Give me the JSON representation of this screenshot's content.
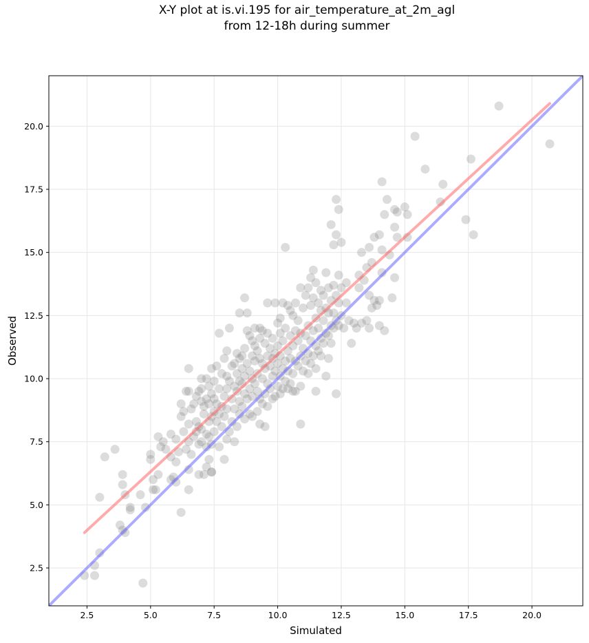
{
  "chart_data": {
    "type": "scatter",
    "title_lines": [
      "X-Y plot at is.vi.195 for air_temperature_at_2m_agl",
      "from 12-18h during summer"
    ],
    "xlabel": "Simulated",
    "ylabel": "Observed",
    "xlim": [
      1.0,
      22.0
    ],
    "ylim": [
      1.0,
      22.0
    ],
    "xticks": [
      2.5,
      5.0,
      7.5,
      10.0,
      12.5,
      15.0,
      17.5,
      20.0
    ],
    "yticks": [
      2.5,
      5.0,
      7.5,
      10.0,
      12.5,
      15.0,
      17.5,
      20.0
    ],
    "xtick_labels": [
      "2.5",
      "5.0",
      "7.5",
      "10.0",
      "12.5",
      "15.0",
      "17.5",
      "20.0"
    ],
    "ytick_labels": [
      "2.5",
      "5.0",
      "7.5",
      "10.0",
      "12.5",
      "15.0",
      "17.5",
      "20.0"
    ],
    "grid": true,
    "point_color": "#808080",
    "regression_color": "#ff6666",
    "identity_color": "#6666ff",
    "regression_line": {
      "x": [
        2.4,
        20.7
      ],
      "y": [
        3.9,
        20.9
      ]
    },
    "identity_line": {
      "x": [
        1.0,
        22.0
      ],
      "y": [
        1.0,
        22.0
      ]
    },
    "points": [
      [
        2.4,
        2.2
      ],
      [
        2.8,
        2.6
      ],
      [
        2.8,
        2.2
      ],
      [
        3.0,
        3.1
      ],
      [
        3.0,
        5.3
      ],
      [
        3.2,
        6.9
      ],
      [
        3.6,
        7.2
      ],
      [
        3.8,
        4.2
      ],
      [
        3.9,
        5.8
      ],
      [
        3.9,
        6.2
      ],
      [
        3.9,
        4.0
      ],
      [
        4.0,
        3.9
      ],
      [
        4.0,
        5.4
      ],
      [
        4.2,
        4.8
      ],
      [
        4.2,
        4.9
      ],
      [
        4.6,
        5.4
      ],
      [
        4.7,
        1.9
      ],
      [
        4.8,
        4.9
      ],
      [
        5.0,
        6.8
      ],
      [
        5.0,
        7.0
      ],
      [
        5.1,
        6.0
      ],
      [
        5.1,
        5.6
      ],
      [
        5.2,
        5.6
      ],
      [
        5.3,
        7.7
      ],
      [
        5.3,
        6.2
      ],
      [
        5.4,
        7.3
      ],
      [
        5.5,
        7.5
      ],
      [
        5.6,
        7.2
      ],
      [
        5.8,
        6.0
      ],
      [
        5.8,
        7.8
      ],
      [
        5.8,
        6.9
      ],
      [
        5.9,
        6.1
      ],
      [
        6.0,
        5.9
      ],
      [
        6.0,
        7.6
      ],
      [
        6.0,
        6.7
      ],
      [
        6.1,
        7.1
      ],
      [
        6.2,
        8.5
      ],
      [
        6.2,
        4.7
      ],
      [
        6.2,
        9.0
      ],
      [
        6.3,
        7.9
      ],
      [
        6.3,
        8.7
      ],
      [
        6.4,
        9.5
      ],
      [
        6.4,
        7.2
      ],
      [
        6.5,
        7.5
      ],
      [
        6.5,
        9.5
      ],
      [
        6.5,
        10.4
      ],
      [
        6.5,
        5.6
      ],
      [
        6.5,
        6.4
      ],
      [
        6.5,
        8.2
      ],
      [
        6.6,
        8.8
      ],
      [
        6.6,
        7.0
      ],
      [
        6.7,
        9.0
      ],
      [
        6.7,
        7.7
      ],
      [
        6.8,
        8.3
      ],
      [
        6.8,
        7.9
      ],
      [
        6.8,
        9.3
      ],
      [
        6.9,
        6.2
      ],
      [
        6.9,
        7.4
      ],
      [
        6.9,
        8.1
      ],
      [
        6.9,
        9.5
      ],
      [
        7.0,
        7.5
      ],
      [
        7.0,
        8.0
      ],
      [
        7.0,
        9.1
      ],
      [
        7.0,
        9.6
      ],
      [
        7.0,
        10.0
      ],
      [
        7.1,
        6.2
      ],
      [
        7.1,
        8.6
      ],
      [
        7.1,
        8.9
      ],
      [
        7.2,
        6.5
      ],
      [
        7.2,
        7.3
      ],
      [
        7.2,
        7.8
      ],
      [
        7.2,
        9.2
      ],
      [
        7.2,
        10.0
      ],
      [
        7.3,
        6.8
      ],
      [
        7.3,
        7.7
      ],
      [
        7.3,
        8.3
      ],
      [
        7.3,
        9.0
      ],
      [
        7.3,
        9.7
      ],
      [
        7.4,
        6.3
      ],
      [
        7.4,
        6.3
      ],
      [
        7.4,
        7.4
      ],
      [
        7.4,
        8.5
      ],
      [
        7.4,
        9.4
      ],
      [
        7.4,
        10.4
      ],
      [
        7.5,
        7.9
      ],
      [
        7.5,
        8.7
      ],
      [
        7.5,
        9.2
      ],
      [
        7.5,
        9.9
      ],
      [
        7.6,
        8.3
      ],
      [
        7.6,
        9.0
      ],
      [
        7.6,
        10.5
      ],
      [
        7.7,
        7.3
      ],
      [
        7.7,
        8.6
      ],
      [
        7.7,
        9.6
      ],
      [
        7.7,
        11.8
      ],
      [
        7.8,
        8.1
      ],
      [
        7.8,
        8.9
      ],
      [
        7.8,
        10.2
      ],
      [
        7.9,
        6.8
      ],
      [
        7.9,
        8.5
      ],
      [
        7.9,
        9.3
      ],
      [
        7.9,
        10.8
      ],
      [
        8.0,
        7.6
      ],
      [
        8.0,
        8.8
      ],
      [
        8.0,
        9.6
      ],
      [
        8.0,
        10.1
      ],
      [
        8.0,
        11.1
      ],
      [
        8.1,
        7.9
      ],
      [
        8.1,
        9.9
      ],
      [
        8.1,
        12.0
      ],
      [
        8.2,
        8.3
      ],
      [
        8.2,
        9.2
      ],
      [
        8.2,
        10.5
      ],
      [
        8.3,
        7.5
      ],
      [
        8.3,
        8.8
      ],
      [
        8.3,
        9.7
      ],
      [
        8.3,
        10.6
      ],
      [
        8.4,
        8.1
      ],
      [
        8.4,
        9.5
      ],
      [
        8.4,
        10.2
      ],
      [
        8.4,
        11.0
      ],
      [
        8.5,
        8.6
      ],
      [
        8.5,
        9.1
      ],
      [
        8.5,
        9.9
      ],
      [
        8.5,
        10.8
      ],
      [
        8.5,
        12.6
      ],
      [
        8.6,
        8.9
      ],
      [
        8.6,
        9.8
      ],
      [
        8.6,
        10.4
      ],
      [
        8.6,
        10.9
      ],
      [
        8.7,
        8.4
      ],
      [
        8.7,
        9.4
      ],
      [
        8.7,
        10.1
      ],
      [
        8.7,
        11.2
      ],
      [
        8.7,
        13.2
      ],
      [
        8.8,
        9.2
      ],
      [
        8.8,
        10.6
      ],
      [
        8.8,
        11.9
      ],
      [
        8.8,
        12.6
      ],
      [
        8.9,
        8.6
      ],
      [
        8.9,
        9.6
      ],
      [
        8.9,
        10.3
      ],
      [
        8.9,
        11.7
      ],
      [
        9.0,
        9.3
      ],
      [
        9.0,
        10.0
      ],
      [
        9.0,
        10.9
      ],
      [
        9.0,
        11.5
      ],
      [
        9.0,
        8.5
      ],
      [
        9.1,
        9.8
      ],
      [
        9.1,
        10.7
      ],
      [
        9.1,
        11.3
      ],
      [
        9.1,
        12.0
      ],
      [
        9.2,
        8.7
      ],
      [
        9.2,
        9.5
      ],
      [
        9.2,
        10.2
      ],
      [
        9.2,
        11.1
      ],
      [
        9.3,
        8.2
      ],
      [
        9.3,
        9.2
      ],
      [
        9.3,
        10.8
      ],
      [
        9.3,
        11.6
      ],
      [
        9.3,
        12.0
      ],
      [
        9.4,
        9.0
      ],
      [
        9.4,
        10.0
      ],
      [
        9.4,
        10.6
      ],
      [
        9.4,
        11.9
      ],
      [
        9.5,
        8.1
      ],
      [
        9.5,
        9.4
      ],
      [
        9.5,
        10.4
      ],
      [
        9.5,
        11.4
      ],
      [
        9.6,
        8.9
      ],
      [
        9.6,
        9.8
      ],
      [
        9.6,
        10.9
      ],
      [
        9.6,
        11.8
      ],
      [
        9.6,
        13.0
      ],
      [
        9.7,
        9.6
      ],
      [
        9.7,
        10.5
      ],
      [
        9.7,
        11.2
      ],
      [
        9.8,
        9.2
      ],
      [
        9.8,
        10.1
      ],
      [
        9.8,
        10.8
      ],
      [
        9.8,
        11.6
      ],
      [
        9.9,
        9.3
      ],
      [
        9.9,
        10.3
      ],
      [
        9.9,
        11.0
      ],
      [
        9.9,
        13.0
      ],
      [
        10.0,
        9.7
      ],
      [
        10.0,
        10.6
      ],
      [
        10.0,
        11.3
      ],
      [
        10.0,
        12.2
      ],
      [
        10.1,
        9.4
      ],
      [
        10.1,
        10.1
      ],
      [
        10.1,
        10.9
      ],
      [
        10.1,
        11.8
      ],
      [
        10.1,
        12.4
      ],
      [
        10.2,
        9.6
      ],
      [
        10.2,
        10.4
      ],
      [
        10.2,
        11.5
      ],
      [
        10.2,
        13.0
      ],
      [
        10.3,
        9.9
      ],
      [
        10.3,
        10.7
      ],
      [
        10.3,
        12.0
      ],
      [
        10.3,
        15.2
      ],
      [
        10.4,
        9.6
      ],
      [
        10.4,
        10.3
      ],
      [
        10.4,
        11.1
      ],
      [
        10.4,
        12.9
      ],
      [
        10.5,
        9.8
      ],
      [
        10.5,
        10.8
      ],
      [
        10.5,
        11.7
      ],
      [
        10.5,
        12.7
      ],
      [
        10.6,
        9.5
      ],
      [
        10.6,
        10.2
      ],
      [
        10.6,
        11.3
      ],
      [
        10.6,
        12.5
      ],
      [
        10.7,
        9.5
      ],
      [
        10.7,
        10.7
      ],
      [
        10.7,
        11.9
      ],
      [
        10.7,
        13.0
      ],
      [
        10.8,
        10.5
      ],
      [
        10.8,
        11.5
      ],
      [
        10.8,
        12.3
      ],
      [
        10.9,
        9.7
      ],
      [
        10.9,
        10.9
      ],
      [
        10.9,
        11.8
      ],
      [
        10.9,
        13.6
      ],
      [
        10.9,
        8.2
      ],
      [
        11.0,
        10.3
      ],
      [
        11.0,
        11.2
      ],
      [
        11.0,
        12.8
      ],
      [
        11.1,
        10.7
      ],
      [
        11.1,
        11.7
      ],
      [
        11.1,
        13.3
      ],
      [
        11.2,
        10.2
      ],
      [
        11.2,
        11.0
      ],
      [
        11.2,
        12.1
      ],
      [
        11.2,
        13.6
      ],
      [
        11.3,
        10.6
      ],
      [
        11.3,
        11.5
      ],
      [
        11.3,
        12.9
      ],
      [
        11.3,
        14.0
      ],
      [
        11.4,
        10.9
      ],
      [
        11.4,
        11.9
      ],
      [
        11.4,
        13.2
      ],
      [
        11.4,
        14.3
      ],
      [
        11.5,
        9.5
      ],
      [
        11.5,
        10.4
      ],
      [
        11.5,
        11.3
      ],
      [
        11.5,
        12.4
      ],
      [
        11.5,
        13.8
      ],
      [
        11.6,
        11.1
      ],
      [
        11.6,
        12.0
      ],
      [
        11.6,
        13.0
      ],
      [
        11.7,
        10.9
      ],
      [
        11.7,
        11.6
      ],
      [
        11.7,
        12.7
      ],
      [
        11.7,
        13.5
      ],
      [
        11.8,
        11.4
      ],
      [
        11.8,
        12.3
      ],
      [
        11.8,
        13.3
      ],
      [
        11.9,
        10.1
      ],
      [
        11.9,
        11.8
      ],
      [
        11.9,
        12.8
      ],
      [
        11.9,
        14.2
      ],
      [
        12.0,
        10.8
      ],
      [
        12.0,
        11.7
      ],
      [
        12.0,
        12.6
      ],
      [
        12.0,
        13.6
      ],
      [
        12.1,
        11.4
      ],
      [
        12.1,
        12.1
      ],
      [
        12.1,
        13.1
      ],
      [
        12.1,
        16.1
      ],
      [
        12.2,
        12.0
      ],
      [
        12.2,
        12.6
      ],
      [
        12.2,
        13.7
      ],
      [
        12.2,
        15.3
      ],
      [
        12.3,
        9.4
      ],
      [
        12.3,
        12.3
      ],
      [
        12.3,
        13.3
      ],
      [
        12.3,
        15.7
      ],
      [
        12.3,
        17.1
      ],
      [
        12.4,
        12.1
      ],
      [
        12.4,
        13.0
      ],
      [
        12.4,
        14.1
      ],
      [
        12.4,
        16.7
      ],
      [
        12.5,
        12.5
      ],
      [
        12.5,
        13.6
      ],
      [
        12.5,
        15.4
      ],
      [
        12.6,
        12.0
      ],
      [
        12.7,
        13.0
      ],
      [
        12.7,
        13.8
      ],
      [
        12.8,
        12.3
      ],
      [
        12.9,
        11.4
      ],
      [
        13.0,
        12.2
      ],
      [
        13.1,
        12.0
      ],
      [
        13.2,
        13.6
      ],
      [
        13.2,
        14.1
      ],
      [
        13.3,
        12.2
      ],
      [
        13.3,
        15.0
      ],
      [
        13.4,
        13.9
      ],
      [
        13.5,
        12.3
      ],
      [
        13.5,
        14.4
      ],
      [
        13.6,
        12.0
      ],
      [
        13.6,
        13.3
      ],
      [
        13.6,
        15.2
      ],
      [
        13.7,
        12.8
      ],
      [
        13.7,
        14.6
      ],
      [
        13.8,
        13.1
      ],
      [
        13.8,
        15.6
      ],
      [
        13.9,
        12.9
      ],
      [
        14.0,
        13.1
      ],
      [
        14.0,
        15.7
      ],
      [
        14.0,
        12.1
      ],
      [
        14.1,
        14.2
      ],
      [
        14.1,
        17.8
      ],
      [
        14.1,
        15.1
      ],
      [
        14.2,
        16.5
      ],
      [
        14.2,
        11.9
      ],
      [
        14.3,
        17.1
      ],
      [
        14.4,
        14.9
      ],
      [
        14.5,
        13.2
      ],
      [
        14.6,
        14.0
      ],
      [
        14.6,
        16.0
      ],
      [
        14.6,
        16.7
      ],
      [
        14.7,
        15.6
      ],
      [
        14.7,
        16.6
      ],
      [
        15.0,
        16.8
      ],
      [
        15.1,
        16.5
      ],
      [
        15.1,
        15.6
      ],
      [
        15.4,
        19.6
      ],
      [
        15.8,
        18.3
      ],
      [
        16.4,
        17.0
      ],
      [
        16.5,
        17.7
      ],
      [
        17.4,
        16.3
      ],
      [
        17.6,
        18.7
      ],
      [
        17.7,
        15.7
      ],
      [
        18.7,
        20.8
      ],
      [
        20.7,
        19.3
      ]
    ]
  }
}
